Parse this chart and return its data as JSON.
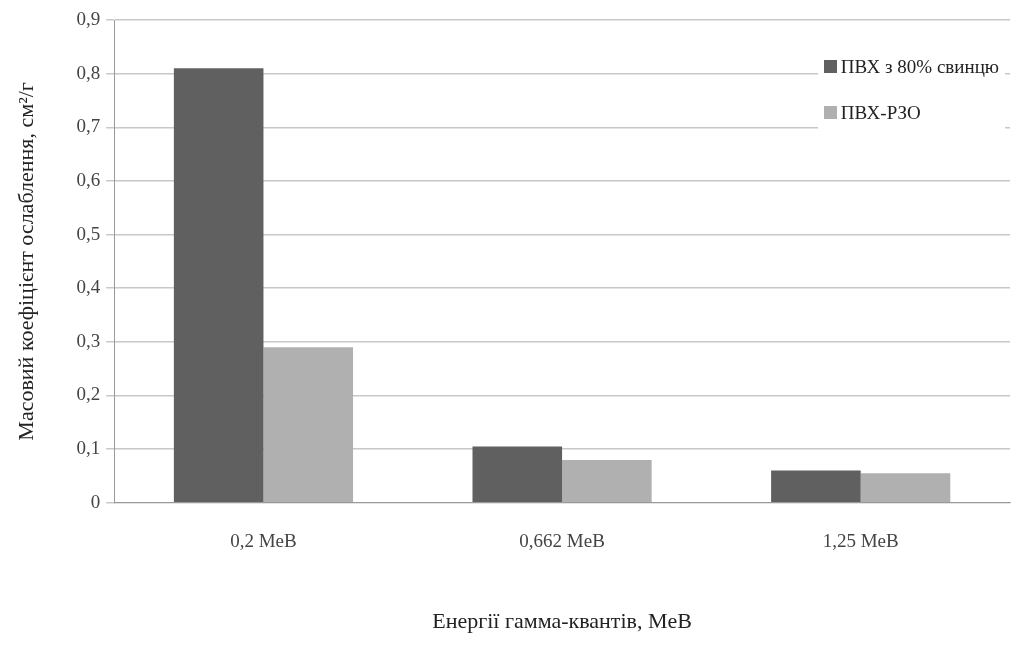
{
  "chart_data": {
    "type": "bar",
    "xlabel": "Енергії гамма-квантів, MeB",
    "ylabel": "Масовий коефіцієнт ослаблення, см²/г",
    "categories": [
      "0,2 MeB",
      "0,662 MeB",
      "1,25 MeB"
    ],
    "series": [
      {
        "name": "ПВХ з 80% свинцю",
        "color": "#606060",
        "values": [
          0.81,
          0.105,
          0.06
        ]
      },
      {
        "name": "ПВХ-РЗО",
        "color": "#b0b0b0",
        "values": [
          0.29,
          0.08,
          0.055
        ]
      }
    ],
    "ylim": [
      0,
      0.9
    ],
    "yticks": [
      {
        "value": 0,
        "label": "0"
      },
      {
        "value": 0.1,
        "label": "0,1"
      },
      {
        "value": 0.2,
        "label": "0,2"
      },
      {
        "value": 0.3,
        "label": "0,3"
      },
      {
        "value": 0.4,
        "label": "0,4"
      },
      {
        "value": 0.5,
        "label": "0,5"
      },
      {
        "value": 0.6,
        "label": "0,6"
      },
      {
        "value": 0.7,
        "label": "0,7"
      },
      {
        "value": 0.8,
        "label": "0,8"
      },
      {
        "value": 0.9,
        "label": "0,9"
      }
    ],
    "grid": "y",
    "legend": "top right"
  }
}
